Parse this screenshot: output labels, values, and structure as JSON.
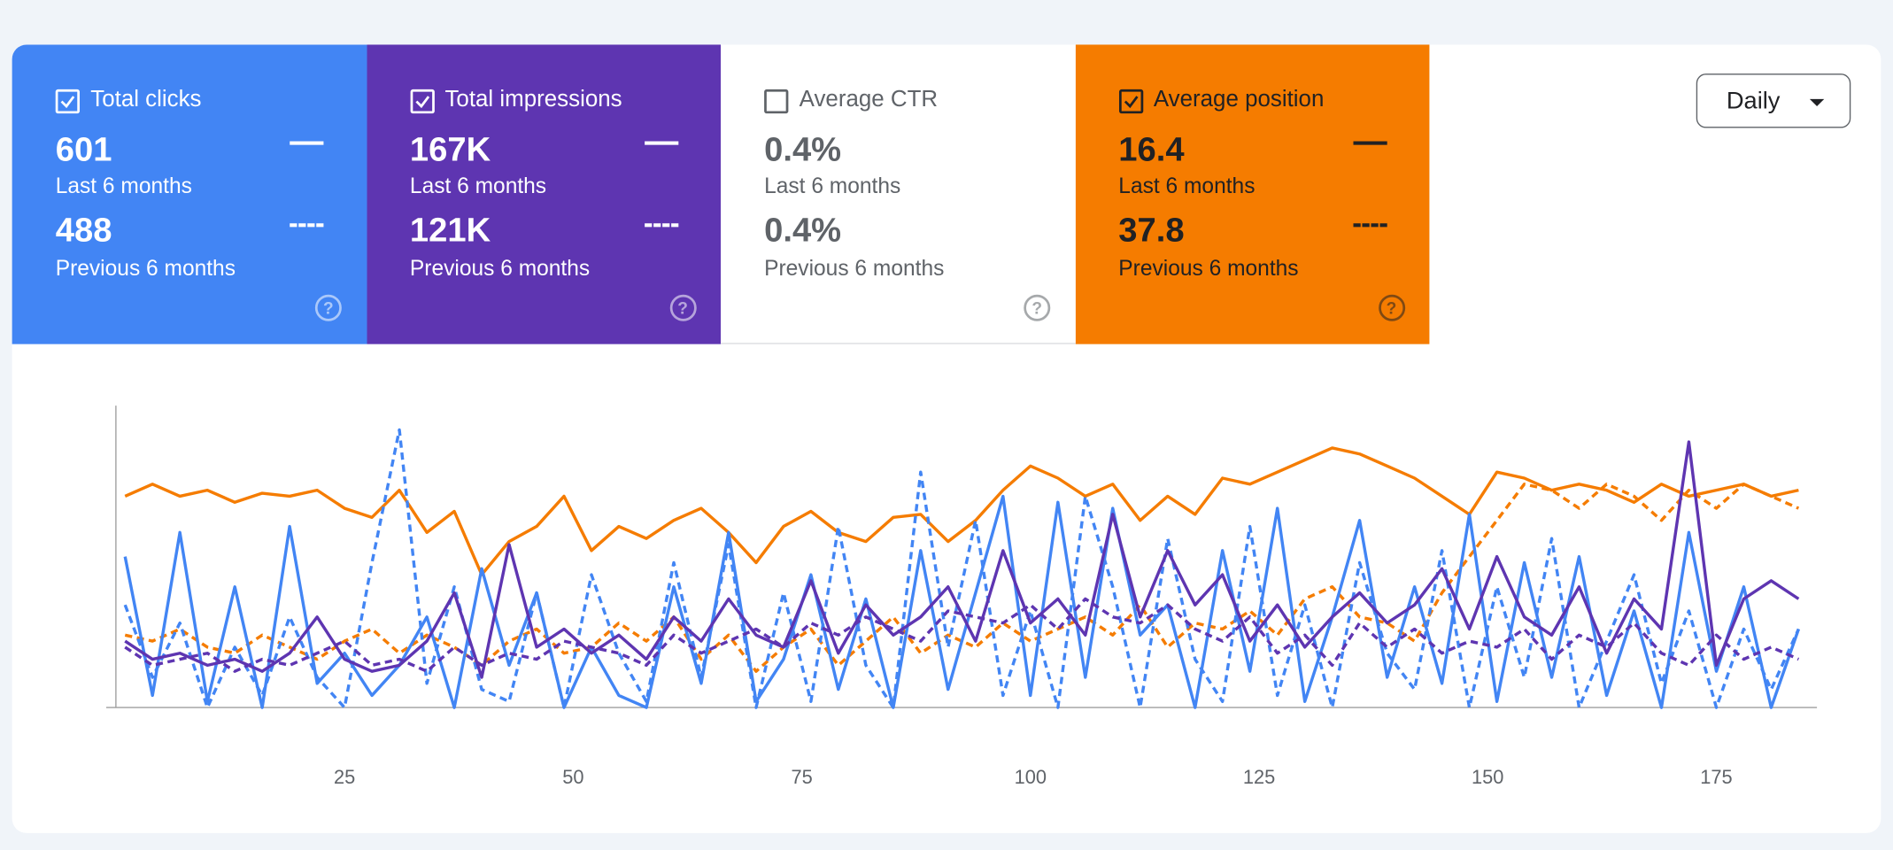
{
  "cards": [
    {
      "label": "Total clicks",
      "checked": true,
      "color": "#4285f4",
      "text_color": "#ffffff",
      "current": "601",
      "current_label": "Last 6 months",
      "previous": "488",
      "previous_label": "Previous 6 months"
    },
    {
      "label": "Total impressions",
      "checked": true,
      "color": "#5e35b1",
      "text_color": "#ffffff",
      "current": "167K",
      "current_label": "Last 6 months",
      "previous": "121K",
      "previous_label": "Previous 6 months"
    },
    {
      "label": "Average CTR",
      "checked": false,
      "color": "#ffffff",
      "text_color": "#5f6368",
      "current": "0.4%",
      "current_label": "Last 6 months",
      "previous": "0.4%",
      "previous_label": "Previous 6 months"
    },
    {
      "label": "Average position",
      "checked": true,
      "color": "#f57c00",
      "text_color": "#202124",
      "current": "16.4",
      "current_label": "Last 6 months",
      "previous": "37.8",
      "previous_label": "Previous 6 months"
    }
  ],
  "period_selector": "Daily",
  "chart_data": {
    "type": "line",
    "x": [
      1,
      4,
      7,
      10,
      13,
      16,
      19,
      22,
      25,
      28,
      31,
      34,
      37,
      40,
      43,
      46,
      49,
      52,
      55,
      58,
      61,
      64,
      67,
      70,
      73,
      76,
      79,
      82,
      85,
      88,
      91,
      94,
      97,
      100,
      103,
      106,
      109,
      112,
      115,
      118,
      121,
      124,
      127,
      130,
      133,
      136,
      139,
      142,
      145,
      148,
      151,
      154,
      157,
      160,
      163,
      166,
      169,
      172,
      175,
      178,
      181,
      184
    ],
    "xlim": [
      0,
      186
    ],
    "xticks": [
      25,
      50,
      75,
      100,
      125,
      150,
      175
    ],
    "ylim": [
      0,
      100
    ],
    "grid": false,
    "series": [
      {
        "color": "#f57c00",
        "dashed": false,
        "values": [
          70,
          74,
          70,
          72,
          68,
          71,
          70,
          72,
          66,
          63,
          72,
          58,
          65,
          44,
          55,
          60,
          70,
          52,
          60,
          56,
          62,
          66,
          58,
          48,
          60,
          65,
          58,
          55,
          63,
          64,
          55,
          62,
          72,
          80,
          76,
          70,
          74,
          62,
          70,
          64,
          76,
          74,
          78,
          82,
          86,
          84,
          80,
          76,
          70,
          64,
          78,
          76,
          72,
          74,
          72,
          68,
          74,
          70,
          72,
          74,
          70,
          72
        ]
      },
      {
        "color": "#f57c00",
        "dashed": true,
        "values": [
          24,
          22,
          26,
          20,
          18,
          24,
          20,
          16,
          22,
          26,
          18,
          24,
          20,
          14,
          22,
          26,
          18,
          20,
          28,
          22,
          30,
          16,
          24,
          12,
          20,
          26,
          14,
          22,
          30,
          18,
          24,
          20,
          28,
          22,
          26,
          30,
          24,
          34,
          20,
          28,
          26,
          32,
          24,
          36,
          40,
          30,
          28,
          22,
          38,
          50,
          62,
          74,
          72,
          66,
          74,
          70,
          62,
          72,
          66,
          74,
          70,
          66
        ]
      },
      {
        "color": "#4285f4",
        "dashed": false,
        "values": [
          50,
          4,
          58,
          2,
          40,
          0,
          60,
          8,
          18,
          4,
          14,
          30,
          0,
          46,
          14,
          38,
          0,
          20,
          4,
          0,
          40,
          8,
          58,
          2,
          16,
          44,
          6,
          36,
          0,
          52,
          6,
          38,
          70,
          4,
          68,
          10,
          66,
          24,
          34,
          0,
          52,
          12,
          66,
          2,
          30,
          62,
          10,
          40,
          8,
          64,
          2,
          48,
          10,
          50,
          4,
          32,
          0,
          58,
          12,
          40,
          0,
          26
        ]
      },
      {
        "color": "#4285f4",
        "dashed": true,
        "values": [
          34,
          10,
          28,
          0,
          20,
          4,
          30,
          10,
          0,
          48,
          92,
          8,
          40,
          6,
          2,
          38,
          0,
          44,
          18,
          2,
          48,
          10,
          54,
          0,
          38,
          2,
          60,
          14,
          0,
          78,
          20,
          62,
          4,
          32,
          0,
          70,
          40,
          0,
          56,
          16,
          2,
          60,
          4,
          34,
          0,
          48,
          18,
          6,
          52,
          0,
          40,
          10,
          56,
          0,
          22,
          44,
          8,
          32,
          0,
          26,
          6,
          26
        ]
      },
      {
        "color": "#5e35b1",
        "dashed": false,
        "values": [
          22,
          16,
          18,
          14,
          16,
          12,
          18,
          30,
          16,
          12,
          14,
          22,
          38,
          10,
          54,
          20,
          26,
          18,
          24,
          16,
          30,
          22,
          36,
          24,
          20,
          42,
          18,
          34,
          24,
          30,
          40,
          22,
          52,
          28,
          36,
          24,
          64,
          30,
          52,
          34,
          44,
          22,
          34,
          20,
          30,
          38,
          28,
          34,
          46,
          26,
          50,
          30,
          24,
          40,
          18,
          36,
          26,
          88,
          14,
          36,
          42,
          36
        ]
      },
      {
        "color": "#5e35b1",
        "dashed": true,
        "values": [
          20,
          14,
          16,
          18,
          12,
          16,
          14,
          18,
          22,
          14,
          16,
          12,
          20,
          14,
          18,
          16,
          22,
          20,
          18,
          14,
          24,
          18,
          22,
          26,
          20,
          28,
          24,
          30,
          26,
          22,
          32,
          30,
          28,
          34,
          26,
          36,
          30,
          28,
          34,
          26,
          22,
          30,
          18,
          24,
          14,
          28,
          20,
          26,
          18,
          22,
          20,
          26,
          16,
          24,
          20,
          28,
          18,
          14,
          24,
          16,
          20,
          16
        ]
      }
    ]
  }
}
